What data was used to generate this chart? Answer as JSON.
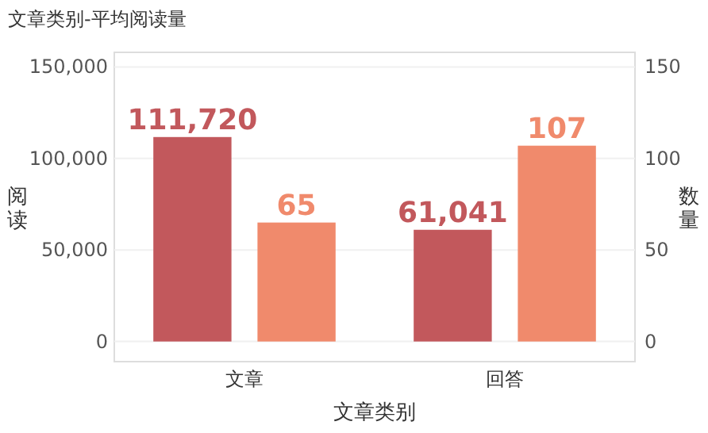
{
  "chart_data": {
    "type": "bar",
    "title": "文章类别-平均阅读量",
    "xlabel": "文章类别",
    "ylabel": "阅读",
    "y2label": "数量",
    "categories": [
      "文章",
      "回答"
    ],
    "series": [
      {
        "color": "#c2585c",
        "values": [
          111720,
          61041
        ],
        "value_labels": [
          "111,720",
          "61,041"
        ]
      },
      {
        "color": "#f08a6c",
        "values": [
          65,
          107
        ],
        "axis": "y2",
        "value_labels": [
          "65",
          "107"
        ]
      }
    ],
    "ylim": [
      -11000,
      158000
    ],
    "yticks": [
      {
        "value": 0,
        "label": "0"
      },
      {
        "value": 50000,
        "label": "50,000"
      },
      {
        "value": 100000,
        "label": "100,000"
      },
      {
        "value": 150000,
        "label": "150,000"
      }
    ],
    "y2lim": [
      -11,
      158
    ],
    "y2ticks": [
      0,
      50,
      100,
      150
    ],
    "grid": "y"
  }
}
